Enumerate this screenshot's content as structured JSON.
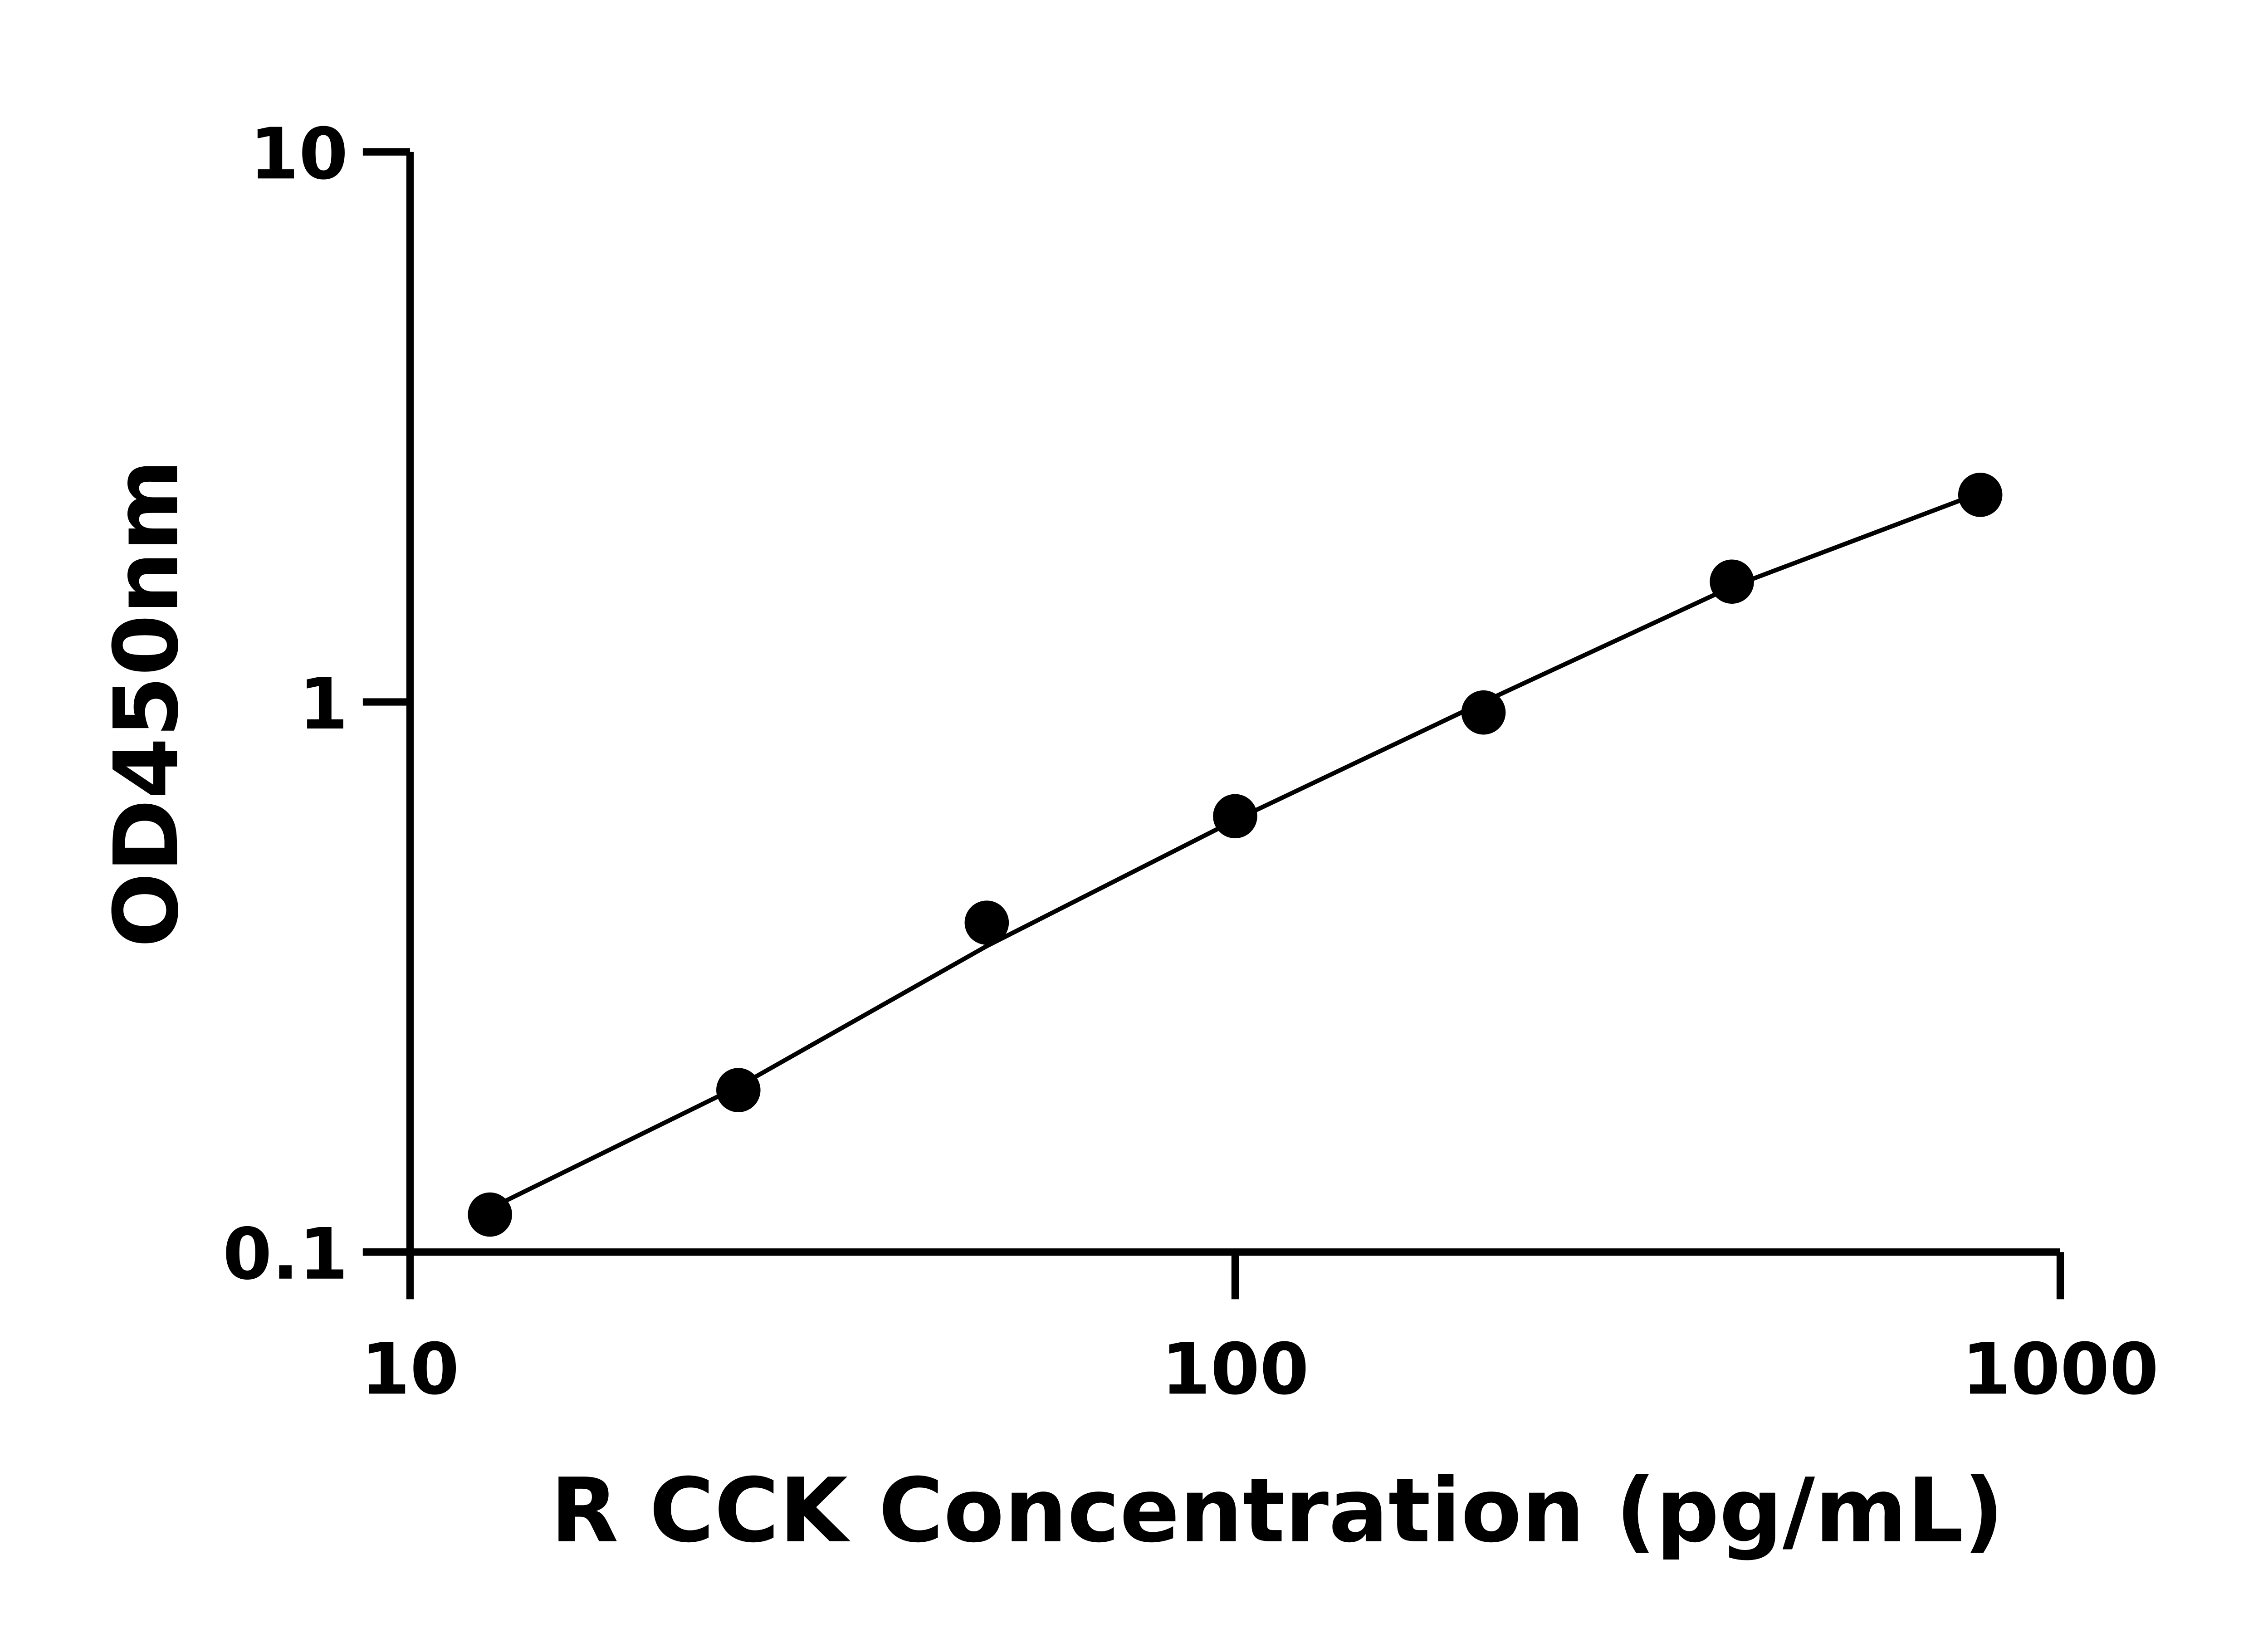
{
  "chart_data": {
    "type": "scatter",
    "x_label": "R CCK Concentration (pg/mL)",
    "y_label": "OD450nm",
    "x": [
      12.5,
      25,
      50,
      100,
      200,
      400,
      800
    ],
    "values": [
      0.117,
      0.197,
      0.397,
      0.62,
      0.957,
      1.655,
      2.38
    ],
    "color": "#000000",
    "fit": {
      "x": [
        12.5,
        25,
        50,
        100,
        200,
        400,
        800
      ],
      "values": [
        0.12,
        0.2,
        0.36,
        0.61,
        1.0,
        1.62,
        2.4
      ]
    },
    "xlim": [
      10,
      1000
    ],
    "xticks": [
      10,
      100,
      1000
    ],
    "xscale": "log",
    "ylim": [
      0.1,
      10
    ],
    "yticks": [
      0.1,
      1,
      10
    ],
    "yscale": "log",
    "grid": false
  }
}
